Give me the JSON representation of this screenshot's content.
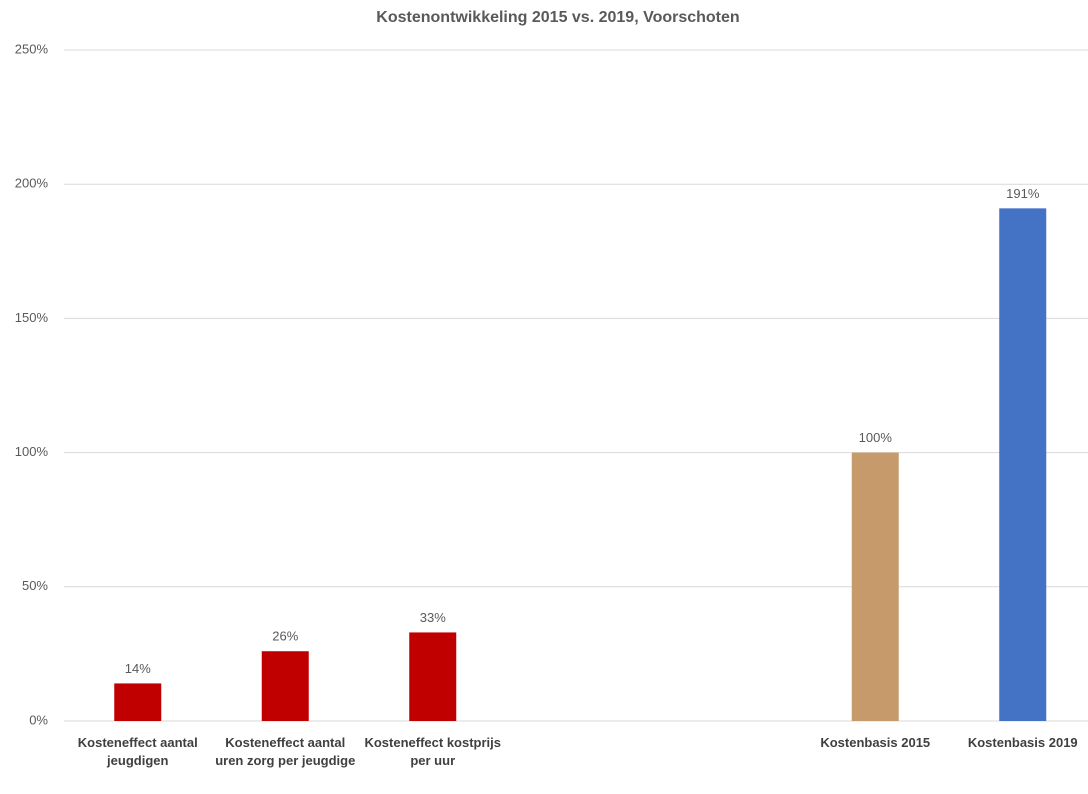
{
  "chart_data": {
    "type": "bar",
    "title": "Kostenontwikkeling 2015 vs. 2019, Voorschoten",
    "categories": [
      "Kosteneffect aantal jeugdigen",
      "Kosteneffect aantal uren zorg per jeugdige",
      "Kosteneffect kostprijs per uur",
      null,
      null,
      "Kostenbasis 2015",
      "Kostenbasis 2019"
    ],
    "values": [
      14,
      26,
      33,
      null,
      null,
      100,
      191
    ],
    "value_labels": [
      "14%",
      "26%",
      "33%",
      null,
      null,
      "100%",
      "191%"
    ],
    "colors": [
      "#c00000",
      "#c00000",
      "#c00000",
      null,
      null,
      "#c69a6a",
      "#4472c4"
    ],
    "ylim": [
      0,
      250
    ],
    "yticks": [
      {
        "value": 0,
        "label": "0%"
      },
      {
        "value": 50,
        "label": "50%"
      },
      {
        "value": 100,
        "label": "100%"
      },
      {
        "value": 150,
        "label": "150%"
      },
      {
        "value": 200,
        "label": "200%"
      },
      {
        "value": 250,
        "label": "250%"
      }
    ],
    "grid": true
  }
}
